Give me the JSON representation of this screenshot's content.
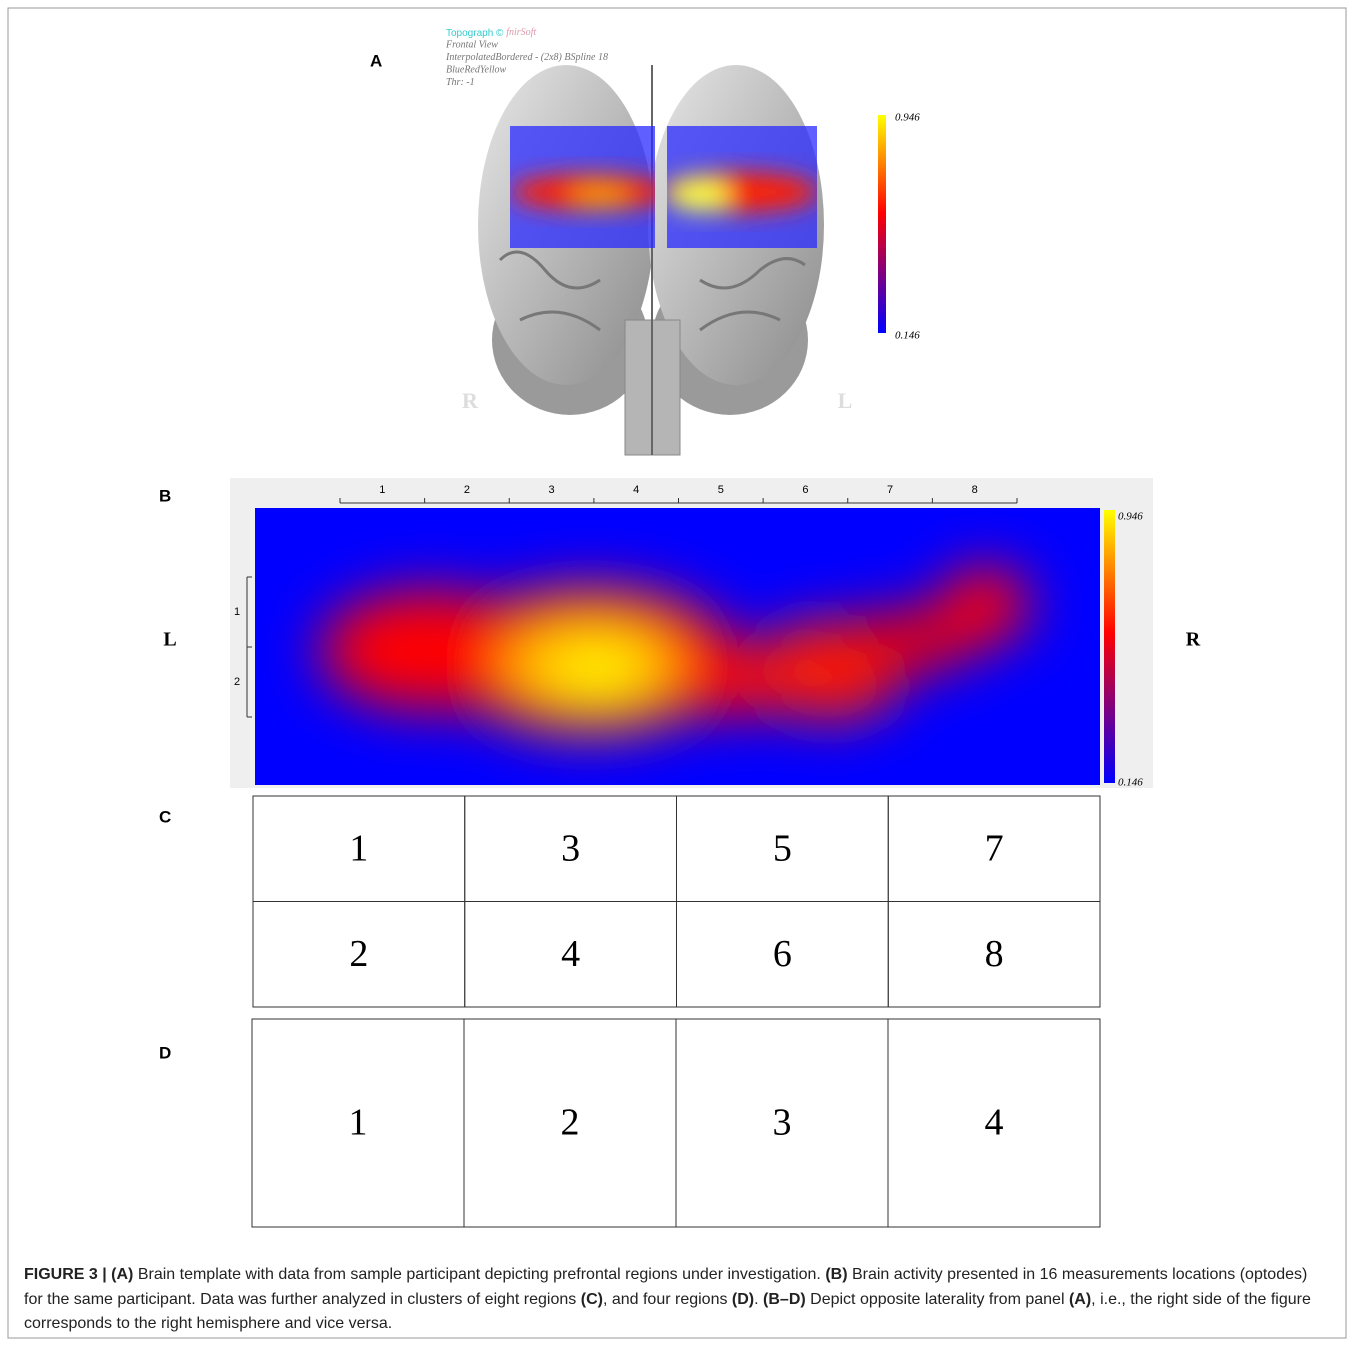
{
  "panel_a": {
    "label": "A",
    "software": {
      "name": "Topograph",
      "symbol": "©",
      "brand": "fnirSoft"
    },
    "info": [
      "Frontal View",
      "InterpolatedBordered - (2x8) BSpline 18",
      "BlueRedYellow",
      "Thr: -1"
    ],
    "colorbar": {
      "max": 0.946,
      "min": 0.146
    },
    "side_labels": {
      "left": "R",
      "right": "L"
    }
  },
  "panel_b": {
    "label": "B",
    "columns": [
      1,
      2,
      3,
      4,
      5,
      6,
      7,
      8
    ],
    "rows": [
      1,
      2
    ],
    "side_labels": {
      "left": "L",
      "right": "R"
    },
    "colorbar": {
      "max": 0.946,
      "min": 0.146
    }
  },
  "panel_c": {
    "label": "C",
    "rows": [
      [
        1,
        3,
        5,
        7
      ],
      [
        2,
        4,
        6,
        8
      ]
    ]
  },
  "panel_d": {
    "label": "D",
    "rows": [
      [
        1,
        2,
        3,
        4
      ]
    ]
  },
  "caption": [
    {
      "text": "FIGURE 3 | ",
      "bold": true
    },
    {
      "text": "(A)",
      "bold": true
    },
    {
      "text": " Brain template with data from sample participant depicting prefrontal regions under investigation. ",
      "bold": false
    },
    {
      "text": "(B)",
      "bold": true
    },
    {
      "text": " Brain activity presented in 16 measurements locations (optodes) for the same participant. Data was further analyzed in clusters of eight regions ",
      "bold": false
    },
    {
      "text": "(C)",
      "bold": true
    },
    {
      "text": ", and four regions ",
      "bold": false
    },
    {
      "text": "(D)",
      "bold": true
    },
    {
      "text": ". ",
      "bold": false
    },
    {
      "text": "(B–D)",
      "bold": true
    },
    {
      "text": " Depict opposite laterality from panel ",
      "bold": false
    },
    {
      "text": "(A)",
      "bold": true
    },
    {
      "text": ", i.e., the right side of the figure corresponds to the right hemisphere and vice versa.",
      "bold": false
    }
  ]
}
